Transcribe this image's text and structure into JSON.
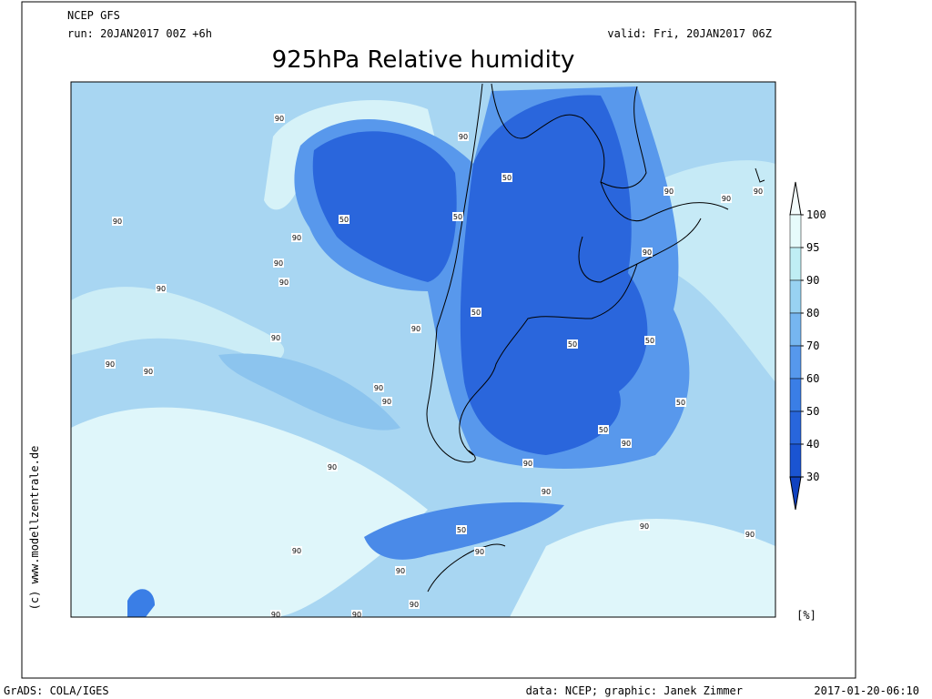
{
  "header": {
    "model": "NCEP GFS",
    "run": "run: 20JAN2017 00Z +6h",
    "valid": "valid: Fri, 20JAN2017 06Z"
  },
  "title": "925hPa Relative humidity",
  "copyright": "(c) www.modellzentrale.de",
  "contour_labels": [
    90,
    90,
    50,
    50,
    50,
    90,
    90,
    90,
    90,
    90,
    90,
    90,
    90,
    90,
    90,
    50,
    90,
    50,
    50,
    90,
    90,
    90,
    90,
    50,
    50,
    90,
    90,
    90,
    90,
    50,
    90,
    90,
    90,
    90,
    90,
    90,
    90,
    90
  ],
  "colorbar": {
    "ticks": [
      100,
      95,
      90,
      80,
      70,
      60,
      50,
      40,
      30
    ],
    "band_colors": [
      "#e6fbfb",
      "#bfeef4",
      "#98d2f2",
      "#76b6f0",
      "#5698ec",
      "#3a7ee6",
      "#2866dc",
      "#1a54d2"
    ],
    "over_color": "#f4fdfd",
    "under_color": "#1042c0",
    "unit": "[%]"
  },
  "footer": {
    "left": "GrADS: COLA/IGES",
    "center": "data: NCEP; graphic: Janek Zimmer",
    "right": "2017-01-20-06:10"
  }
}
